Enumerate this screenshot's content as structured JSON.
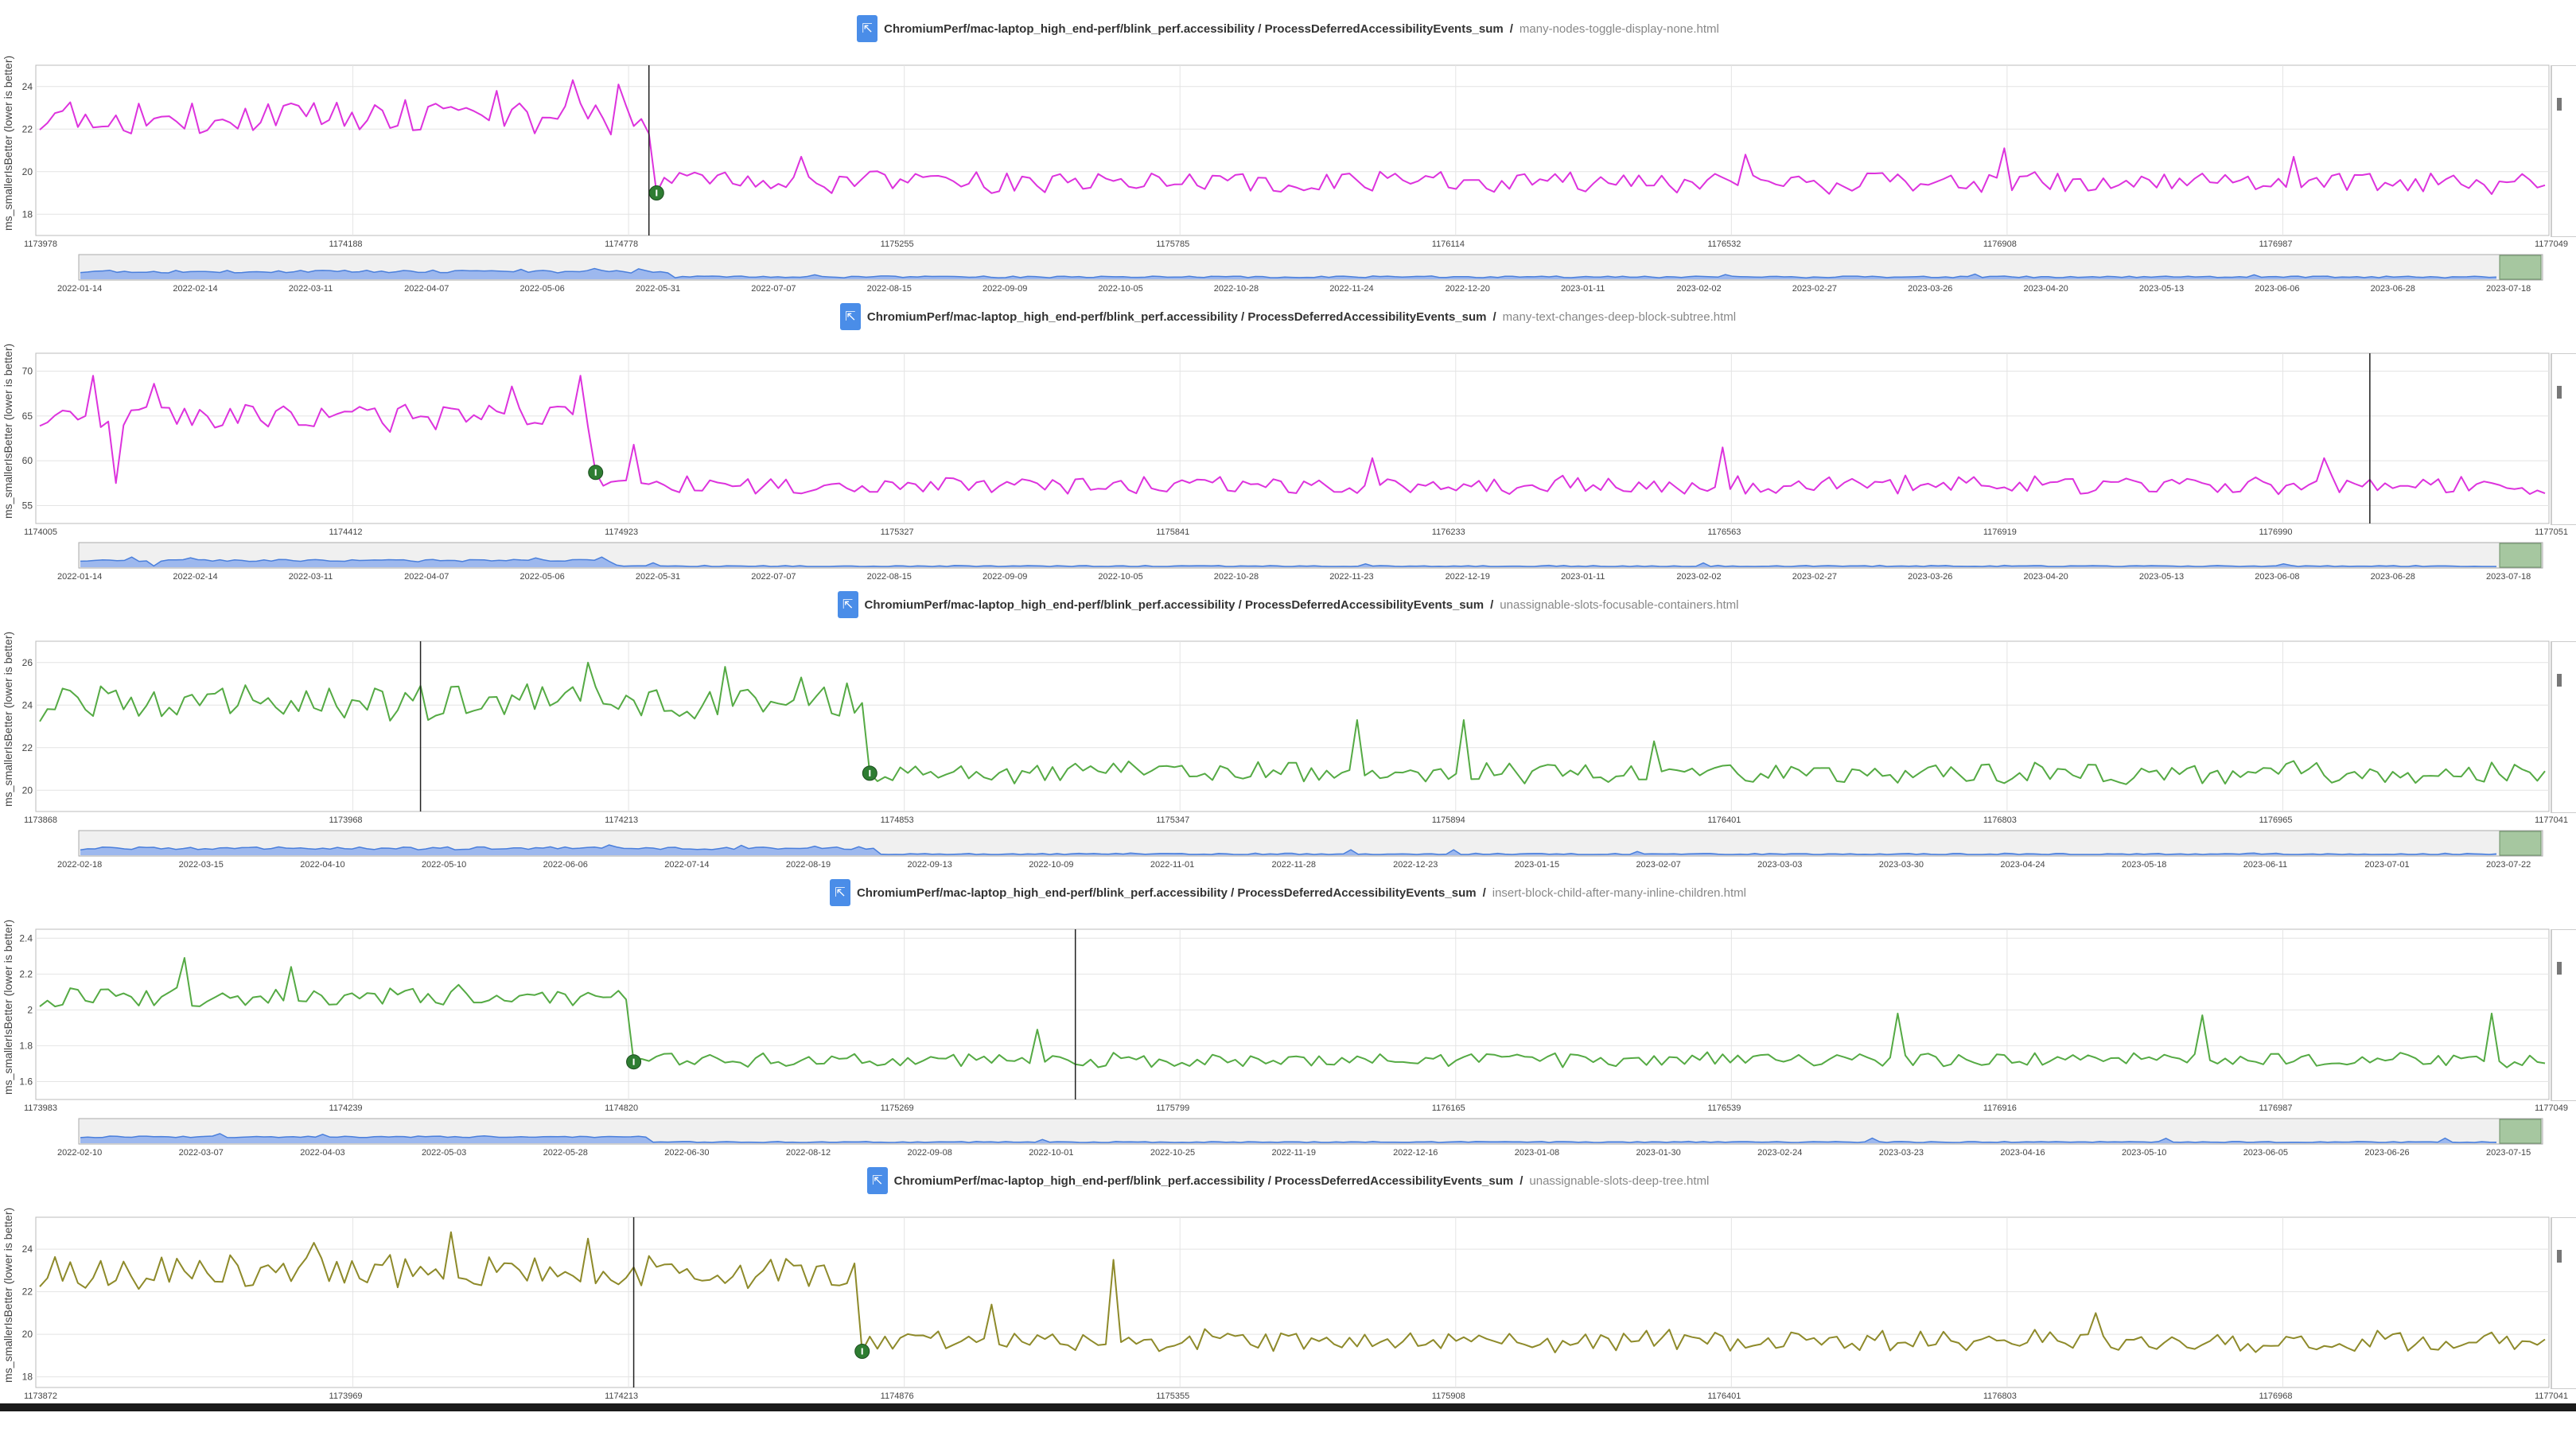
{
  "colors": {
    "magenta": "#dd33dd",
    "green": "#55aa44",
    "olive": "#8e8a2a",
    "marker": "#2e7d32",
    "overview_line": "#4a7fdc",
    "overview_fill": "#9db8ee",
    "brush": "#a6c7a0",
    "grid": "#e4e4e4"
  },
  "icons": {
    "title_link": "external-link-arrow-icon",
    "anomaly": "anomaly-marker-icon"
  },
  "chart_data": [
    {
      "type": "line",
      "title_main": "ChromiumPerf/mac-laptop_high_end-perf/blink_perf.accessibility / ProcessDeferredAccessibilityEvents_sum",
      "title_sep": "/",
      "title_story": "many-nodes-toggle-display-none.html",
      "ylabel": "ms_smallerIsBetter (lower is better)",
      "ylim": [
        17,
        25
      ],
      "yticks": [
        18,
        20,
        22,
        24
      ],
      "xticks": [
        "1173978",
        "1174188",
        "1174778",
        "1175255",
        "1175785",
        "1176114",
        "1176532",
        "1176908",
        "1176987",
        "1177049"
      ],
      "date_ticks": [
        "2022-01-14",
        "2022-02-14",
        "2022-03-11",
        "2022-04-07",
        "2022-05-06",
        "2022-05-31",
        "2022-07-07",
        "2022-08-15",
        "2022-09-09",
        "2022-10-05",
        "2022-10-28",
        "2022-11-24",
        "2022-12-20",
        "2023-01-11",
        "2023-02-02",
        "2023-02-27",
        "2023-03-26",
        "2023-04-20",
        "2023-05-13",
        "2023-06-06",
        "2023-06-28",
        "2023-07-18"
      ],
      "color": "magenta",
      "n_points": 330,
      "break_index": 80,
      "before": {
        "mean": 22.6,
        "amp": 0.75,
        "spikes": [
          [
            70,
            24.3
          ],
          [
            76,
            24.1
          ],
          [
            60,
            23.8
          ]
        ]
      },
      "after": {
        "mean": 19.5,
        "amp": 0.45,
        "spikes": [
          [
            100,
            20.7
          ],
          [
            258,
            21.1
          ],
          [
            224,
            20.8
          ],
          [
            296,
            20.7
          ]
        ]
      },
      "first_after": 19.0,
      "cursor_index": 80,
      "series": [
        {
          "values": []
        }
      ]
    },
    {
      "type": "line",
      "title_main": "ChromiumPerf/mac-laptop_high_end-perf/blink_perf.accessibility / ProcessDeferredAccessibilityEvents_sum",
      "title_sep": "/",
      "title_story": "many-text-changes-deep-block-subtree.html",
      "ylabel": "ms_smallerIsBetter (lower is better)",
      "ylim": [
        53,
        72
      ],
      "yticks": [
        55,
        60,
        65,
        70
      ],
      "xticks": [
        "1174005",
        "1174412",
        "1174923",
        "1175327",
        "1175841",
        "1176233",
        "1176563",
        "1176919",
        "1176990",
        "1177051"
      ],
      "date_ticks": [
        "2022-01-14",
        "2022-02-14",
        "2022-03-11",
        "2022-04-07",
        "2022-05-06",
        "2022-05-31",
        "2022-07-07",
        "2022-08-15",
        "2022-09-09",
        "2022-10-05",
        "2022-10-28",
        "2022-11-23",
        "2022-12-19",
        "2023-01-11",
        "2023-02-02",
        "2023-02-27",
        "2023-03-26",
        "2023-04-20",
        "2023-05-13",
        "2023-06-08",
        "2023-06-28",
        "2023-07-18"
      ],
      "color": "magenta",
      "n_points": 330,
      "break_index": 72,
      "before": {
        "mean": 64.8,
        "amp": 1.3,
        "spikes": [
          [
            7,
            69.5
          ],
          [
            15,
            68.6
          ],
          [
            10,
            57.5
          ],
          [
            62,
            68.3
          ],
          [
            71,
            69.5
          ]
        ]
      },
      "after": {
        "mean": 57.3,
        "amp": 0.9,
        "spikes": [
          [
            78,
            61.8
          ],
          [
            221,
            61.5
          ],
          [
            175,
            60.3
          ],
          [
            300,
            60.3
          ]
        ]
      },
      "first_after": 58.7,
      "cursor_index": 306,
      "series": [
        {
          "values": []
        }
      ]
    },
    {
      "type": "line",
      "title_main": "ChromiumPerf/mac-laptop_high_end-perf/blink_perf.accessibility / ProcessDeferredAccessibilityEvents_sum",
      "title_sep": "/",
      "title_story": "unassignable-slots-focusable-containers.html",
      "ylabel": "ms_smallerIsBetter (lower is better)",
      "ylim": [
        19,
        27
      ],
      "yticks": [
        20,
        22,
        24,
        26
      ],
      "xticks": [
        "1173868",
        "1173968",
        "1174213",
        "1174853",
        "1175347",
        "1175894",
        "1176401",
        "1176803",
        "1176965",
        "1177041"
      ],
      "date_ticks": [
        "2022-02-18",
        "2022-03-15",
        "2022-04-10",
        "2022-05-10",
        "2022-06-06",
        "2022-07-14",
        "2022-08-19",
        "2022-09-13",
        "2022-10-09",
        "2022-11-01",
        "2022-11-28",
        "2022-12-23",
        "2023-01-15",
        "2023-02-07",
        "2023-03-03",
        "2023-03-30",
        "2023-04-24",
        "2023-05-18",
        "2023-06-11",
        "2023-07-01",
        "2023-07-22"
      ],
      "color": "green",
      "n_points": 330,
      "break_index": 108,
      "before": {
        "mean": 24.1,
        "amp": 0.75,
        "spikes": [
          [
            72,
            26.0
          ],
          [
            90,
            25.8
          ],
          [
            100,
            25.3
          ]
        ]
      },
      "after": {
        "mean": 20.8,
        "amp": 0.45,
        "spikes": [
          [
            173,
            23.3
          ],
          [
            187,
            23.3
          ],
          [
            212,
            22.3
          ]
        ]
      },
      "first_after": 20.8,
      "cursor_index": 50,
      "series": [
        {
          "values": []
        }
      ]
    },
    {
      "type": "line",
      "title_main": "ChromiumPerf/mac-laptop_high_end-perf/blink_perf.accessibility / ProcessDeferredAccessibilityEvents_sum",
      "title_sep": "/",
      "title_story": "insert-block-child-after-many-inline-children.html",
      "ylabel": "ms_smallerIsBetter (lower is better)",
      "ylim": [
        1.5,
        2.45
      ],
      "yticks": [
        1.6,
        1.8,
        2.0,
        2.2,
        2.4
      ],
      "xticks": [
        "1173983",
        "1174239",
        "1174820",
        "1175269",
        "1175799",
        "1176165",
        "1176539",
        "1176916",
        "1176987",
        "1177049"
      ],
      "date_ticks": [
        "2022-02-10",
        "2022-03-07",
        "2022-04-03",
        "2022-05-03",
        "2022-05-28",
        "2022-06-30",
        "2022-08-12",
        "2022-09-08",
        "2022-10-01",
        "2022-10-25",
        "2022-11-19",
        "2022-12-16",
        "2023-01-08",
        "2023-01-30",
        "2023-02-24",
        "2023-03-23",
        "2023-04-16",
        "2023-05-10",
        "2023-06-05",
        "2023-06-26",
        "2023-07-15"
      ],
      "color": "green",
      "n_points": 330,
      "break_index": 77,
      "before": {
        "mean": 2.07,
        "amp": 0.05,
        "spikes": [
          [
            19,
            2.29
          ],
          [
            33,
            2.24
          ],
          [
            55,
            2.14
          ]
        ]
      },
      "after": {
        "mean": 1.72,
        "amp": 0.035,
        "spikes": [
          [
            244,
            1.98
          ],
          [
            284,
            1.97
          ],
          [
            322,
            1.98
          ],
          [
            131,
            1.89
          ]
        ]
      },
      "first_after": 1.71,
      "cursor_index": 136,
      "series": [
        {
          "values": []
        }
      ]
    },
    {
      "type": "line",
      "title_main": "ChromiumPerf/mac-laptop_high_end-perf/blink_perf.accessibility / ProcessDeferredAccessibilityEvents_sum",
      "title_sep": "/",
      "title_story": "unassignable-slots-deep-tree.html",
      "ylabel": "ms_smallerIsBetter (lower is better)",
      "ylim": [
        17.5,
        25.5
      ],
      "yticks": [
        18,
        20,
        22,
        24
      ],
      "xticks": [
        "1173872",
        "1173969",
        "1174213",
        "1174876",
        "1175355",
        "1175908",
        "1176401",
        "1176803",
        "1176968",
        "1177041"
      ],
      "date_ticks": [],
      "color": "olive",
      "n_points": 330,
      "break_index": 107,
      "before": {
        "mean": 22.9,
        "amp": 0.75,
        "spikes": [
          [
            54,
            24.8
          ],
          [
            72,
            24.5
          ],
          [
            36,
            24.3
          ]
        ]
      },
      "after": {
        "mean": 19.7,
        "amp": 0.45,
        "spikes": [
          [
            141,
            23.5
          ],
          [
            125,
            21.4
          ],
          [
            270,
            21.0
          ]
        ]
      },
      "first_after": 19.2,
      "cursor_index": 78,
      "series": [
        {
          "values": []
        }
      ]
    }
  ]
}
